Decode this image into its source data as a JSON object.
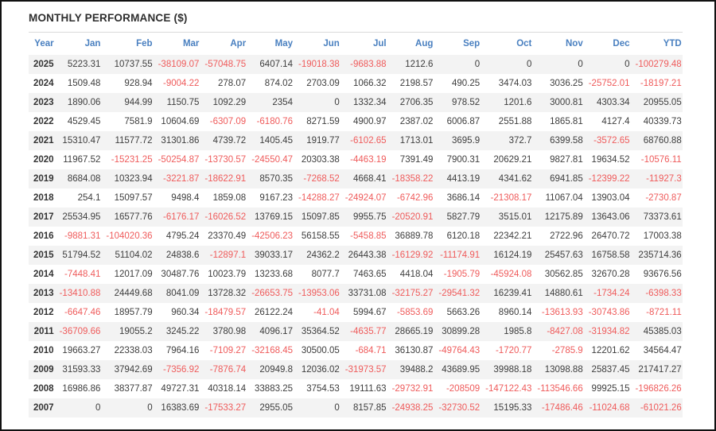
{
  "title": "MONTHLY PERFORMANCE ($)",
  "colors": {
    "header_text": "#4a80c0",
    "negative_value": "#ef5b5b",
    "positive_value": "#3d3d3d",
    "row_stripe": "#f3f3f3",
    "outer_border": "#111111",
    "title_rule": "#d9d9d9"
  },
  "chart_data": {
    "type": "table",
    "title": "MONTHLY PERFORMANCE ($)",
    "columns": [
      "Year",
      "Jan",
      "Feb",
      "Mar",
      "Apr",
      "May",
      "Jun",
      "Jul",
      "Aug",
      "Sep",
      "Oct",
      "Nov",
      "Dec",
      "YTD"
    ],
    "rows": [
      {
        "year": "2025",
        "values": [
          5223.31,
          10737.55,
          -38109.07,
          -57048.75,
          6407.14,
          -19018.38,
          -9683.88,
          1212.6,
          0,
          0,
          0,
          0,
          -100279.48
        ]
      },
      {
        "year": "2024",
        "values": [
          1509.48,
          928.94,
          -9004.22,
          278.07,
          874.02,
          2703.09,
          1066.32,
          2198.57,
          490.25,
          3474.03,
          3036.25,
          -25752.01,
          -18197.21
        ]
      },
      {
        "year": "2023",
        "values": [
          1890.06,
          944.99,
          1150.75,
          1092.29,
          2354,
          0,
          1332.34,
          2706.35,
          978.52,
          1201.6,
          3000.81,
          4303.34,
          20955.05
        ]
      },
      {
        "year": "2022",
        "values": [
          4529.45,
          7581.9,
          10604.69,
          -6307.09,
          -6180.76,
          8271.59,
          4900.97,
          2387.02,
          6006.87,
          2551.88,
          1865.81,
          4127.4,
          40339.73
        ]
      },
      {
        "year": "2021",
        "values": [
          15310.47,
          11577.72,
          31301.86,
          4739.72,
          1405.45,
          1919.77,
          -6102.65,
          1713.01,
          3695.9,
          372.7,
          6399.58,
          -3572.65,
          68760.88
        ]
      },
      {
        "year": "2020",
        "values": [
          11967.52,
          -15231.25,
          -50254.87,
          -13730.57,
          -24550.47,
          20303.38,
          -4463.19,
          7391.49,
          7900.31,
          20629.21,
          9827.81,
          19634.52,
          -10576.11
        ]
      },
      {
        "year": "2019",
        "values": [
          8684.08,
          10323.94,
          -3221.87,
          -18622.91,
          8570.35,
          -7268.52,
          4668.41,
          -18358.22,
          4413.19,
          4341.62,
          6941.85,
          -12399.22,
          -11927.3
        ]
      },
      {
        "year": "2018",
        "values": [
          254.1,
          15097.57,
          9498.4,
          1859.08,
          9167.23,
          -14288.27,
          -24924.07,
          -6742.96,
          3686.14,
          -21308.17,
          11067.04,
          13903.04,
          -2730.87
        ]
      },
      {
        "year": "2017",
        "values": [
          25534.95,
          16577.76,
          -6176.17,
          -16026.52,
          13769.15,
          15097.85,
          9955.75,
          -20520.91,
          5827.79,
          3515.01,
          12175.89,
          13643.06,
          73373.61
        ]
      },
      {
        "year": "2016",
        "values": [
          -9881.31,
          -104020.36,
          4795.24,
          23370.49,
          -42506.23,
          56158.55,
          -5458.85,
          36889.78,
          6120.18,
          22342.21,
          2722.96,
          26470.72,
          17003.38
        ]
      },
      {
        "year": "2015",
        "values": [
          51794.52,
          51104.02,
          24838.6,
          -12897.1,
          39033.17,
          24362.2,
          26443.38,
          -16129.92,
          -11174.91,
          16124.19,
          25457.63,
          16758.58,
          235714.36
        ]
      },
      {
        "year": "2014",
        "values": [
          -7448.41,
          12017.09,
          30487.76,
          10023.79,
          13233.68,
          8077.7,
          7463.65,
          4418.04,
          -1905.79,
          -45924.08,
          30562.85,
          32670.28,
          93676.56
        ]
      },
      {
        "year": "2013",
        "values": [
          -13410.88,
          24449.68,
          8041.09,
          13728.32,
          -26653.75,
          -13953.06,
          33731.08,
          -32175.27,
          -29541.32,
          16239.41,
          14880.61,
          -1734.24,
          -6398.33
        ]
      },
      {
        "year": "2012",
        "values": [
          -6647.46,
          18957.79,
          960.34,
          -18479.57,
          26122.24,
          -41.04,
          5994.67,
          -5853.69,
          5663.26,
          8960.14,
          -13613.93,
          -30743.86,
          -8721.11
        ]
      },
      {
        "year": "2011",
        "values": [
          -36709.66,
          19055.2,
          3245.22,
          3780.98,
          4096.17,
          35364.52,
          -4635.77,
          28665.19,
          30899.28,
          1985.8,
          -8427.08,
          -31934.82,
          45385.03
        ]
      },
      {
        "year": "2010",
        "values": [
          19663.27,
          22338.03,
          7964.16,
          -7109.27,
          -32168.45,
          30500.05,
          -684.71,
          36130.87,
          -49764.43,
          -1720.77,
          -2785.9,
          12201.62,
          34564.47
        ]
      },
      {
        "year": "2009",
        "values": [
          31593.33,
          37942.69,
          -7356.92,
          -7876.74,
          20949.8,
          12036.02,
          -31973.57,
          39488.2,
          43689.95,
          39988.18,
          13098.88,
          25837.45,
          217417.27
        ]
      },
      {
        "year": "2008",
        "values": [
          16986.86,
          38377.87,
          49727.31,
          40318.14,
          33883.25,
          3754.53,
          19111.63,
          -29732.91,
          -208509,
          -147122.43,
          -113546.66,
          99925.15,
          -196826.26
        ]
      },
      {
        "year": "2007",
        "values": [
          0,
          0,
          16383.69,
          -17533.27,
          2955.05,
          0,
          8157.85,
          -24938.25,
          -32730.52,
          15195.33,
          -17486.46,
          -11024.68,
          -61021.26
        ]
      }
    ]
  }
}
